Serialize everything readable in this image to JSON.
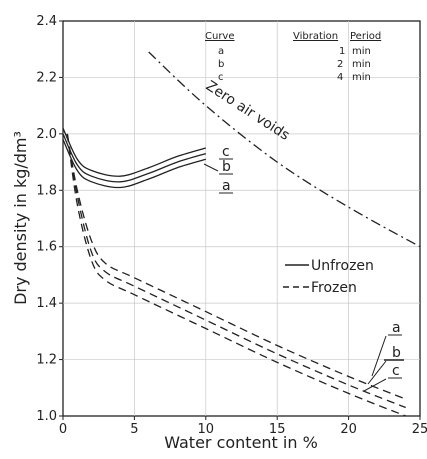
{
  "chart_data": {
    "type": "line",
    "xlabel": "Water content in %",
    "ylabel": "Dry density in kg/dm³",
    "xlim": [
      0,
      25
    ],
    "ylim": [
      1.0,
      2.4
    ],
    "x_ticks": [
      "0",
      "5",
      "10",
      "15",
      "20",
      "25"
    ],
    "y_ticks": [
      "1.0",
      "1.2",
      "1.4",
      "1.6",
      "1.8",
      "2.0",
      "2.2",
      "2.4"
    ],
    "table": {
      "headers": [
        "Curve",
        "Vibration",
        "Period"
      ],
      "rows": [
        [
          "a",
          "1",
          "min"
        ],
        [
          "b",
          "2",
          "min"
        ],
        [
          "c",
          "4",
          "min"
        ]
      ]
    },
    "legend": {
      "unfrozen": "Unfrozen",
      "frozen": "Frozen"
    },
    "zero_air_voids_label": "Zero air voids",
    "series": [
      {
        "name": "a",
        "style": "solid",
        "x": [
          0,
          1,
          2,
          4,
          6,
          8,
          10
        ],
        "y": [
          1.98,
          1.87,
          1.83,
          1.81,
          1.84,
          1.88,
          1.91
        ]
      },
      {
        "name": "b",
        "style": "solid",
        "x": [
          0,
          1,
          2,
          4,
          6,
          8,
          10
        ],
        "y": [
          2.0,
          1.89,
          1.85,
          1.83,
          1.86,
          1.9,
          1.93
        ]
      },
      {
        "name": "c",
        "style": "solid",
        "x": [
          0,
          1,
          2,
          4,
          6,
          8,
          10
        ],
        "y": [
          2.02,
          1.91,
          1.87,
          1.85,
          1.88,
          1.92,
          1.95
        ]
      },
      {
        "name": "a",
        "style": "dashed",
        "x": [
          0.3,
          1,
          2,
          3,
          5,
          10,
          15,
          20,
          24
        ],
        "y": [
          2.0,
          1.8,
          1.62,
          1.54,
          1.49,
          1.37,
          1.25,
          1.14,
          1.06
        ]
      },
      {
        "name": "b",
        "style": "dashed",
        "x": [
          0.3,
          1,
          2,
          3,
          5,
          10,
          15,
          20,
          24
        ],
        "y": [
          2.0,
          1.78,
          1.58,
          1.51,
          1.46,
          1.34,
          1.22,
          1.11,
          1.03
        ]
      },
      {
        "name": "c",
        "style": "dashed",
        "x": [
          0.3,
          1,
          2,
          3,
          5,
          10,
          15,
          20,
          24
        ],
        "y": [
          2.0,
          1.75,
          1.55,
          1.48,
          1.43,
          1.31,
          1.19,
          1.08,
          1.0
        ]
      },
      {
        "name": "Zero air voids",
        "style": "dashdot",
        "x": [
          6,
          10,
          15,
          20,
          25
        ],
        "y": [
          2.29,
          2.1,
          1.9,
          1.74,
          1.6
        ]
      }
    ]
  }
}
